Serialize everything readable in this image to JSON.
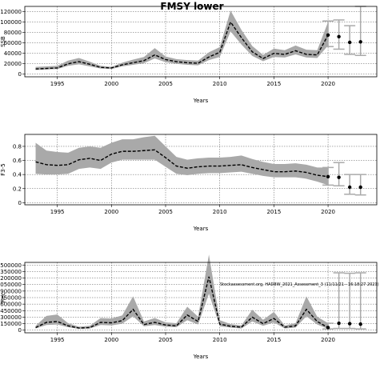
{
  "title": "FMSY lower",
  "chart_data": [
    {
      "type": "line",
      "panel": "SSB",
      "xlabel": "Years",
      "ylabel": "SSB",
      "xlim": [
        1992,
        2024.5
      ],
      "ylim": [
        -5000,
        130000
      ],
      "xticks": [
        1995,
        2000,
        2005,
        2010,
        2015,
        2020
      ],
      "yticks": [
        0,
        20000,
        40000,
        60000,
        80000,
        100000,
        120000
      ],
      "grid": true,
      "x": [
        1993,
        1994,
        1995,
        1996,
        1997,
        1998,
        1999,
        2000,
        2001,
        2002,
        2003,
        2004,
        2005,
        2006,
        2007,
        2008,
        2009,
        2010,
        2011,
        2012,
        2013,
        2014,
        2015,
        2016,
        2017,
        2018,
        2019,
        2020
      ],
      "median": [
        10000,
        11000,
        12000,
        20000,
        24000,
        19000,
        13000,
        12000,
        18000,
        22000,
        26000,
        37000,
        28000,
        24000,
        22000,
        21000,
        33000,
        42000,
        100000,
        70000,
        43000,
        30000,
        40000,
        38000,
        45000,
        38000,
        37000,
        75000
      ],
      "lower": [
        8000,
        9000,
        10000,
        16000,
        19000,
        15000,
        11000,
        10000,
        15000,
        18000,
        21000,
        30000,
        23000,
        20000,
        18000,
        17000,
        27000,
        33000,
        82000,
        57000,
        35000,
        25000,
        33000,
        32000,
        38000,
        32000,
        31000,
        55000
      ],
      "upper": [
        14000,
        15000,
        16000,
        26000,
        31000,
        24000,
        16000,
        14000,
        22000,
        28000,
        33000,
        50000,
        34000,
        29000,
        27000,
        26000,
        42000,
        52000,
        122000,
        85000,
        54000,
        37000,
        49000,
        46000,
        55000,
        47000,
        46000,
        100000
      ],
      "projection": {
        "x": [
          2020,
          2021,
          2022,
          2023
        ],
        "median": [
          75000,
          72000,
          61000,
          62000
        ],
        "lower": [
          53000,
          48000,
          38000,
          36000
        ],
        "upper": [
          102000,
          104000,
          93000,
          130000
        ]
      }
    },
    {
      "type": "line",
      "panel": "F",
      "xlabel": "Years",
      "ylabel": "F3-5",
      "xlim": [
        1992,
        2024.5
      ],
      "ylim": [
        -0.03,
        0.97
      ],
      "xticks": [
        1995,
        2000,
        2005,
        2010,
        2015,
        2020
      ],
      "yticks": [
        0.0,
        0.2,
        0.4,
        0.6,
        0.8
      ],
      "grid": true,
      "x": [
        1993,
        1994,
        1995,
        1996,
        1997,
        1998,
        1999,
        2000,
        2001,
        2002,
        2003,
        2004,
        2005,
        2006,
        2007,
        2008,
        2009,
        2010,
        2011,
        2012,
        2013,
        2014,
        2015,
        2016,
        2017,
        2018,
        2019,
        2020
      ],
      "median": [
        0.58,
        0.54,
        0.53,
        0.54,
        0.61,
        0.63,
        0.6,
        0.69,
        0.73,
        0.73,
        0.74,
        0.75,
        0.64,
        0.52,
        0.49,
        0.51,
        0.52,
        0.52,
        0.53,
        0.54,
        0.5,
        0.47,
        0.44,
        0.44,
        0.45,
        0.43,
        0.39,
        0.37
      ],
      "lower": [
        0.41,
        0.4,
        0.4,
        0.41,
        0.48,
        0.5,
        0.48,
        0.57,
        0.61,
        0.61,
        0.61,
        0.61,
        0.51,
        0.41,
        0.39,
        0.41,
        0.42,
        0.42,
        0.43,
        0.44,
        0.41,
        0.38,
        0.36,
        0.36,
        0.36,
        0.34,
        0.3,
        0.25
      ],
      "upper": [
        0.85,
        0.74,
        0.72,
        0.71,
        0.78,
        0.8,
        0.78,
        0.85,
        0.9,
        0.9,
        0.93,
        0.95,
        0.8,
        0.65,
        0.61,
        0.63,
        0.64,
        0.64,
        0.65,
        0.67,
        0.62,
        0.58,
        0.55,
        0.55,
        0.56,
        0.54,
        0.5,
        0.5
      ],
      "projection": {
        "x": [
          2020,
          2021,
          2022,
          2023
        ],
        "median": [
          0.37,
          0.36,
          0.22,
          0.22
        ],
        "lower": [
          0.25,
          0.24,
          0.12,
          0.11
        ],
        "upper": [
          0.5,
          0.57,
          0.4,
          0.4
        ]
      }
    },
    {
      "type": "line",
      "panel": "Recruitment",
      "xlabel": "Years",
      "ylabel": "Rec",
      "xlim": [
        1992,
        2024.5
      ],
      "ylim": [
        -60000,
        1560000
      ],
      "xticks": [
        1995,
        2000,
        2005,
        2010,
        2015,
        2020
      ],
      "yticks": [
        0,
        150000,
        300000,
        450000,
        600000,
        750000,
        900000,
        1050000,
        1200000,
        1350000,
        1500000
      ],
      "ytick_labels": [
        "0",
        "150000",
        "300000",
        "450000",
        "600000",
        "750000",
        "900000",
        "1050000",
        "1200000",
        "1350000",
        "1500000"
      ],
      "grid": true,
      "annotation": "Stockassessment.org, HAD8W_2021_Assessment_3 (11/11/21 - 16:18:27 2023)",
      "x": [
        1993,
        1994,
        1995,
        1996,
        1997,
        1998,
        1999,
        2000,
        2001,
        2002,
        2003,
        2004,
        2005,
        2006,
        2007,
        2008,
        2009,
        2010,
        2011,
        2012,
        2013,
        2014,
        2015,
        2016,
        2017,
        2018,
        2019,
        2020
      ],
      "median": [
        60000,
        180000,
        200000,
        100000,
        50000,
        60000,
        180000,
        170000,
        220000,
        480000,
        130000,
        180000,
        120000,
        100000,
        350000,
        200000,
        1230000,
        140000,
        90000,
        70000,
        300000,
        150000,
        270000,
        70000,
        100000,
        480000,
        200000,
        60000
      ],
      "lower": [
        40000,
        120000,
        130000,
        70000,
        30000,
        40000,
        120000,
        110000,
        150000,
        320000,
        90000,
        120000,
        80000,
        70000,
        230000,
        130000,
        840000,
        90000,
        60000,
        40000,
        200000,
        100000,
        180000,
        40000,
        60000,
        320000,
        130000,
        30000
      ],
      "upper": [
        100000,
        330000,
        360000,
        160000,
        80000,
        100000,
        280000,
        270000,
        340000,
        780000,
        200000,
        280000,
        180000,
        160000,
        540000,
        310000,
        1740000,
        230000,
        140000,
        110000,
        470000,
        240000,
        420000,
        110000,
        160000,
        780000,
        310000,
        160000
      ],
      "projection": {
        "x": [
          2020,
          2021,
          2022,
          2023
        ],
        "median": [
          60000,
          160000,
          150000,
          140000
        ],
        "lower": [
          30000,
          40000,
          40000,
          30000
        ],
        "upper": [
          160000,
          1320000,
          1310000,
          1320000
        ]
      }
    }
  ]
}
